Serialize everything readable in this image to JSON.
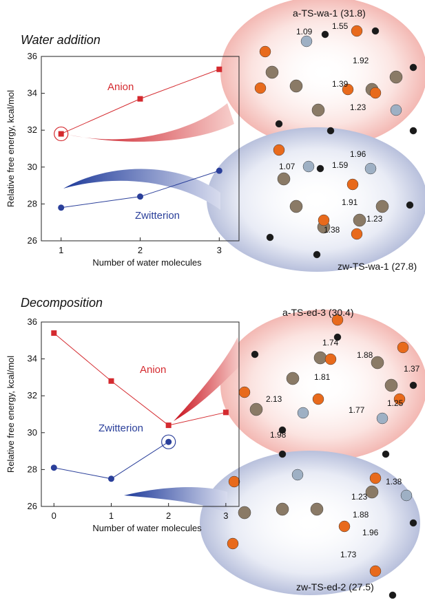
{
  "chart_data": [
    {
      "type": "line",
      "title": "Water addition",
      "xlabel": "Number of water molecules",
      "ylabel": "Relative free energy, kcal/mol",
      "x": [
        1,
        2,
        3
      ],
      "xlim": [
        0.75,
        3.25
      ],
      "xticks": [
        1,
        2,
        3
      ],
      "ylim": [
        26,
        36
      ],
      "yticks": [
        26,
        28,
        30,
        32,
        34,
        36
      ],
      "series": [
        {
          "name": "Anion",
          "color": "#d42a2f",
          "values": [
            31.8,
            33.7,
            35.3
          ]
        },
        {
          "name": "Zwitterion",
          "color": "#2a3f9a",
          "values": [
            27.8,
            28.4,
            29.8
          ]
        }
      ]
    },
    {
      "type": "line",
      "title": "Decomposition",
      "xlabel": "Number of water molecules",
      "ylabel": "Relative free energy, kcal/mol",
      "x": [
        0,
        1,
        2,
        3
      ],
      "xlim": [
        -0.22,
        3.23
      ],
      "xticks": [
        0,
        1,
        2,
        3
      ],
      "ylim": [
        26,
        36
      ],
      "yticks": [
        26,
        28,
        30,
        32,
        34,
        36
      ],
      "series": [
        {
          "name": "Anion",
          "color": "#d42a2f",
          "values": [
            35.4,
            32.8,
            30.4,
            31.1
          ]
        },
        {
          "name": "Zwitterion",
          "color": "#2a3f9a",
          "values": [
            28.1,
            27.5,
            29.5,
            null
          ]
        }
      ]
    }
  ],
  "structures": [
    {
      "label": "a-TS-wa-1 (31.8)",
      "bonds": [
        1.09,
        1.55,
        1.92,
        1.39,
        1.23
      ]
    },
    {
      "label": "zw-TS-wa-1 (27.8)",
      "bonds": [
        1.07,
        1.59,
        1.96,
        1.91,
        1.38,
        1.23
      ]
    },
    {
      "label": "a-TS-ed-3 (30.4)",
      "bonds": [
        1.74,
        1.88,
        1.37,
        1.81,
        1.25,
        2.13,
        1.77,
        1.98
      ]
    },
    {
      "label": "zw-TS-ed-2 (27.5)",
      "bonds": [
        1.23,
        1.38,
        1.88,
        1.96,
        1.73
      ]
    }
  ]
}
